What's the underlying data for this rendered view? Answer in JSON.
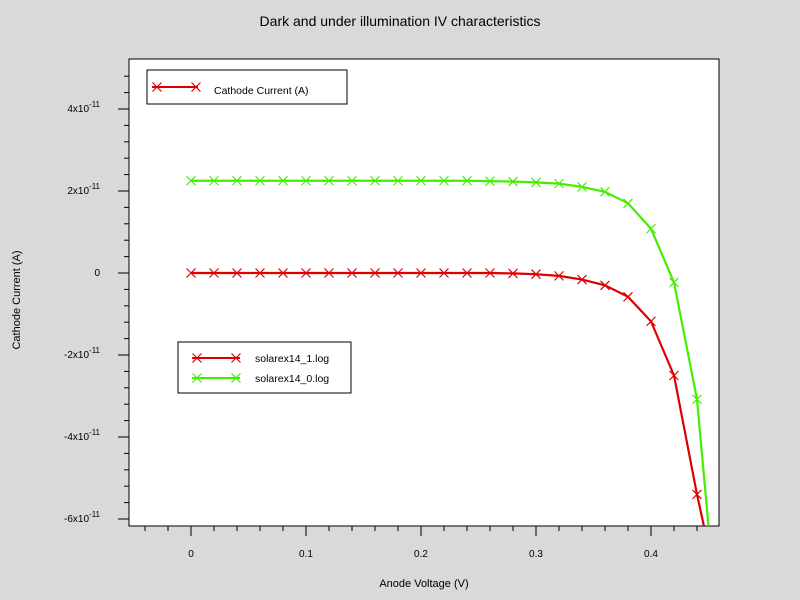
{
  "chart_data": {
    "type": "line",
    "title": "Dark and under illumination IV characteristics",
    "xlabel": "Anode Voltage (V)",
    "ylabel": "Cathode Current (A)",
    "xlim": [
      -0.05,
      0.5
    ],
    "ylim": [
      -6.2e-11,
      5.2e-11
    ],
    "grid": false,
    "x_ticks": [
      {
        "value": 0,
        "label": "0"
      },
      {
        "value": 0.1,
        "label": "0.1"
      },
      {
        "value": 0.2,
        "label": "0.2"
      },
      {
        "value": 0.3,
        "label": "0.3"
      },
      {
        "value": 0.4,
        "label": "0.4"
      }
    ],
    "y_ticks": [
      {
        "value": 4e-11,
        "mant": "4x10",
        "exp": "-11"
      },
      {
        "value": 2e-11,
        "mant": "2x10",
        "exp": "-11"
      },
      {
        "value": 0,
        "mant": "0",
        "exp": ""
      },
      {
        "value": -2e-11,
        "mant": "-2x10",
        "exp": "-11"
      },
      {
        "value": -4e-11,
        "mant": "-4x10",
        "exp": "-11"
      },
      {
        "value": -6e-11,
        "mant": "-6x10",
        "exp": "-11"
      }
    ],
    "quantity_legend": {
      "label": "Cathode Current (A)",
      "color": "#dd0000"
    },
    "legend_placement": "center-left",
    "series": [
      {
        "name": "solarex14_1.log",
        "color": "#dd0000",
        "x": [
          0,
          0.02,
          0.04,
          0.06,
          0.08,
          0.1,
          0.12,
          0.14,
          0.16,
          0.18,
          0.2,
          0.22,
          0.24,
          0.26,
          0.28,
          0.3,
          0.32,
          0.34,
          0.36,
          0.38,
          0.4,
          0.42,
          0.44,
          0.446
        ],
        "y": [
          0,
          0,
          0,
          0,
          0,
          0,
          0,
          0,
          0,
          0,
          0,
          0,
          0,
          0,
          -1e-13,
          -3e-13,
          -7e-13,
          -1.6e-12,
          -3e-12,
          -5.8e-12,
          -1.18e-11,
          -2.5e-11,
          -5.4e-11,
          -6.2e-11
        ]
      },
      {
        "name": "solarex14_0.log",
        "color": "#44ee00",
        "x": [
          0,
          0.02,
          0.04,
          0.06,
          0.08,
          0.1,
          0.12,
          0.14,
          0.16,
          0.18,
          0.2,
          0.22,
          0.24,
          0.26,
          0.28,
          0.3,
          0.32,
          0.34,
          0.36,
          0.38,
          0.4,
          0.42,
          0.44,
          0.45
        ],
        "y": [
          2.25e-11,
          2.25e-11,
          2.25e-11,
          2.25e-11,
          2.25e-11,
          2.25e-11,
          2.25e-11,
          2.25e-11,
          2.25e-11,
          2.25e-11,
          2.25e-11,
          2.25e-11,
          2.25e-11,
          2.24e-11,
          2.23e-11,
          2.21e-11,
          2.18e-11,
          2.1e-11,
          1.98e-11,
          1.7e-11,
          1.08e-11,
          -2.3e-12,
          -3.08e-11,
          -6.2e-11
        ]
      }
    ]
  }
}
